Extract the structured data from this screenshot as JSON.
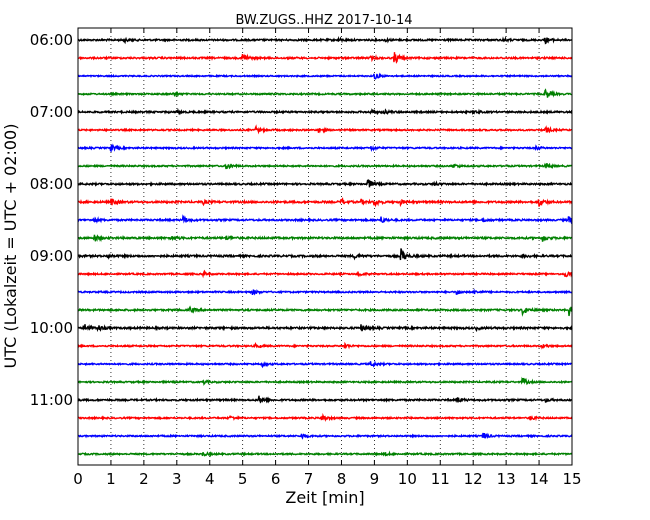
{
  "chart_data": {
    "type": "line",
    "title": "BW.ZUGS..HHZ 2017-10-14",
    "xlabel": "Zeit  [min]",
    "ylabel": "UTC (Lokalzeit = UTC + 02:00)",
    "xlim": [
      0,
      15
    ],
    "x_ticks": [
      "0",
      "1",
      "2",
      "3",
      "4",
      "5",
      "6",
      "7",
      "8",
      "9",
      "10",
      "11",
      "12",
      "13",
      "14",
      "15"
    ],
    "y_ticks": [
      {
        "label": "06:00",
        "trace": 0
      },
      {
        "label": "07:00",
        "trace": 4
      },
      {
        "label": "08:00",
        "trace": 8
      },
      {
        "label": "09:00",
        "trace": 12
      },
      {
        "label": "10:00",
        "trace": 16
      },
      {
        "label": "11:00",
        "trace": 20
      }
    ],
    "grid": "vertical-dotted",
    "colors": [
      "#000000",
      "#ff0000",
      "#0000ff",
      "#008000"
    ],
    "series": [
      {
        "start": "06:00",
        "color": "#000000",
        "noise": 0.8,
        "events": [
          [
            1.4,
            2.0
          ],
          [
            7.9,
            1.5
          ],
          [
            9.3,
            1.6
          ],
          [
            12.9,
            1.4
          ],
          [
            14.2,
            2.8
          ]
        ]
      },
      {
        "start": "06:15",
        "color": "#ff0000",
        "noise": 0.8,
        "events": [
          [
            5.0,
            5.0
          ],
          [
            8.9,
            1.5
          ],
          [
            9.6,
            6.5
          ]
        ]
      },
      {
        "start": "06:30",
        "color": "#0000ff",
        "noise": 0.6,
        "events": [
          [
            9.0,
            3.5
          ]
        ]
      },
      {
        "start": "06:45",
        "color": "#008000",
        "noise": 0.7,
        "events": [
          [
            2.9,
            1.4
          ],
          [
            14.2,
            5.0
          ]
        ]
      },
      {
        "start": "07:00",
        "color": "#000000",
        "noise": 0.8,
        "events": [
          [
            3.0,
            1.4
          ],
          [
            8.9,
            2.3
          ],
          [
            9.3,
            1.8
          ],
          [
            12.0,
            1.6
          ]
        ]
      },
      {
        "start": "07:15",
        "color": "#ff0000",
        "noise": 0.7,
        "events": [
          [
            5.4,
            3.0
          ],
          [
            7.3,
            2.5
          ],
          [
            14.2,
            3.0
          ]
        ]
      },
      {
        "start": "07:30",
        "color": "#0000ff",
        "noise": 0.7,
        "events": [
          [
            1.0,
            3.2
          ],
          [
            8.9,
            2.0
          ],
          [
            13.9,
            2.0
          ]
        ]
      },
      {
        "start": "07:45",
        "color": "#008000",
        "noise": 0.7,
        "events": [
          [
            4.5,
            3.5
          ],
          [
            11.4,
            2.0
          ],
          [
            14.2,
            3.0
          ]
        ]
      },
      {
        "start": "08:00",
        "color": "#000000",
        "noise": 0.8,
        "events": [
          [
            8.8,
            5.0
          ],
          [
            10.8,
            1.6
          ]
        ]
      },
      {
        "start": "08:15",
        "color": "#ff0000",
        "noise": 0.9,
        "events": [
          [
            1.0,
            3.5
          ],
          [
            3.8,
            2.0
          ],
          [
            8.0,
            3.0
          ],
          [
            8.6,
            2.0
          ],
          [
            9.0,
            3.5
          ],
          [
            9.8,
            2.0
          ],
          [
            14.0,
            4.5
          ]
        ]
      },
      {
        "start": "08:30",
        "color": "#0000ff",
        "noise": 0.8,
        "events": [
          [
            0.5,
            2.0
          ],
          [
            3.2,
            3.5
          ],
          [
            9.2,
            3.0
          ],
          [
            12.3,
            1.8
          ],
          [
            14.9,
            3.5
          ]
        ]
      },
      {
        "start": "08:45",
        "color": "#008000",
        "noise": 0.9,
        "events": [
          [
            0.5,
            3.5
          ],
          [
            2.8,
            2.5
          ],
          [
            4.5,
            2.0
          ],
          [
            14.1,
            3.0
          ]
        ]
      },
      {
        "start": "09:00",
        "color": "#000000",
        "noise": 0.9,
        "events": [
          [
            0.9,
            1.5
          ],
          [
            8.4,
            2.0
          ],
          [
            9.8,
            7.5
          ],
          [
            13.5,
            1.6
          ]
        ]
      },
      {
        "start": "09:15",
        "color": "#ff0000",
        "noise": 0.7,
        "events": [
          [
            3.8,
            2.0
          ],
          [
            8.5,
            2.5
          ],
          [
            14.8,
            3.5
          ]
        ]
      },
      {
        "start": "09:30",
        "color": "#0000ff",
        "noise": 0.7,
        "events": [
          [
            5.3,
            2.5
          ],
          [
            11.5,
            2.5
          ],
          [
            12.0,
            2.0
          ]
        ]
      },
      {
        "start": "09:45",
        "color": "#008000",
        "noise": 0.8,
        "events": [
          [
            3.4,
            2.5
          ],
          [
            13.5,
            4.5
          ],
          [
            14.9,
            6.0
          ]
        ]
      },
      {
        "start": "10:00",
        "color": "#000000",
        "noise": 0.9,
        "events": [
          [
            0.2,
            4.0
          ],
          [
            0.6,
            3.0
          ],
          [
            8.6,
            3.0
          ],
          [
            12.1,
            1.5
          ]
        ]
      },
      {
        "start": "10:15",
        "color": "#ff0000",
        "noise": 0.7,
        "events": [
          [
            5.4,
            2.0
          ],
          [
            8.1,
            2.5
          ],
          [
            14.1,
            2.0
          ]
        ]
      },
      {
        "start": "10:30",
        "color": "#0000ff",
        "noise": 0.7,
        "events": [
          [
            5.6,
            2.0
          ],
          [
            8.9,
            2.5
          ]
        ]
      },
      {
        "start": "10:45",
        "color": "#008000",
        "noise": 0.7,
        "events": [
          [
            3.8,
            2.0
          ],
          [
            13.5,
            3.5
          ]
        ]
      },
      {
        "start": "11:00",
        "color": "#000000",
        "noise": 0.8,
        "events": [
          [
            5.5,
            3.5
          ],
          [
            11.5,
            3.0
          ],
          [
            14.2,
            1.5
          ]
        ]
      },
      {
        "start": "11:15",
        "color": "#ff0000",
        "noise": 0.7,
        "events": [
          [
            4.6,
            2.0
          ],
          [
            7.4,
            3.5
          ],
          [
            13.7,
            2.5
          ]
        ]
      },
      {
        "start": "11:30",
        "color": "#0000ff",
        "noise": 0.7,
        "events": [
          [
            6.8,
            2.5
          ],
          [
            12.3,
            3.5
          ]
        ]
      },
      {
        "start": "11:45",
        "color": "#008000",
        "noise": 0.7,
        "events": [
          [
            3.8,
            1.8
          ],
          [
            9.3,
            1.6
          ]
        ]
      }
    ]
  }
}
